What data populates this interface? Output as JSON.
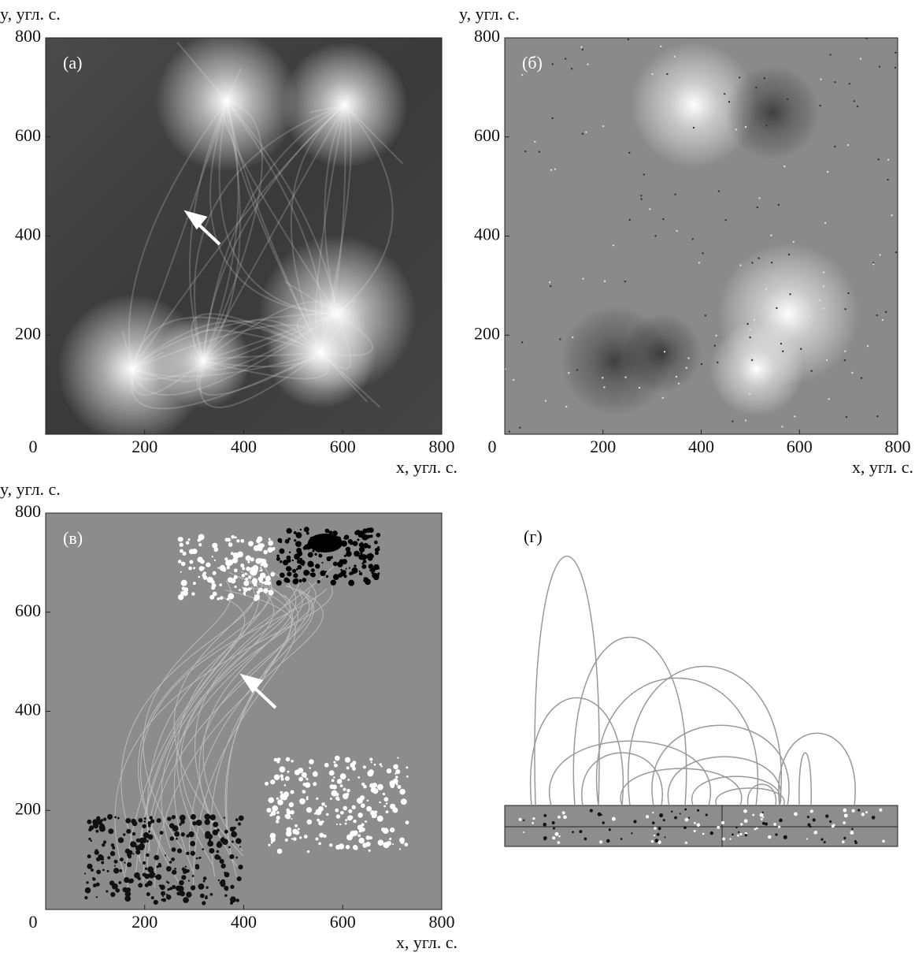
{
  "chart_data": [
    {
      "type": "image",
      "panel_label": "(а)",
      "x_label": "x, угл. с.",
      "y_label": "y, угл. с.",
      "xlim": [
        0,
        800
      ],
      "ylim": [
        0,
        800
      ],
      "xticks": [
        0,
        200,
        400,
        600,
        800
      ],
      "yticks": [
        200,
        400,
        600,
        800
      ]
    },
    {
      "type": "image",
      "panel_label": "(б)",
      "x_label": "x, угл. с.",
      "y_label": "y, угл. с.",
      "xlim": [
        0,
        800
      ],
      "ylim": [
        0,
        800
      ],
      "xticks": [
        0,
        200,
        400,
        600,
        800
      ],
      "yticks": [
        200,
        400,
        600,
        800
      ]
    },
    {
      "type": "image",
      "panel_label": "(в)",
      "x_label": "x, угл. с.",
      "y_label": "y, угл. с.",
      "xlim": [
        0,
        800
      ],
      "ylim": [
        0,
        800
      ],
      "xticks": [
        0,
        200,
        400,
        600,
        800
      ],
      "yticks": [
        200,
        400,
        600,
        800
      ]
    },
    {
      "type": "diagram",
      "panel_label": "(г)"
    }
  ]
}
